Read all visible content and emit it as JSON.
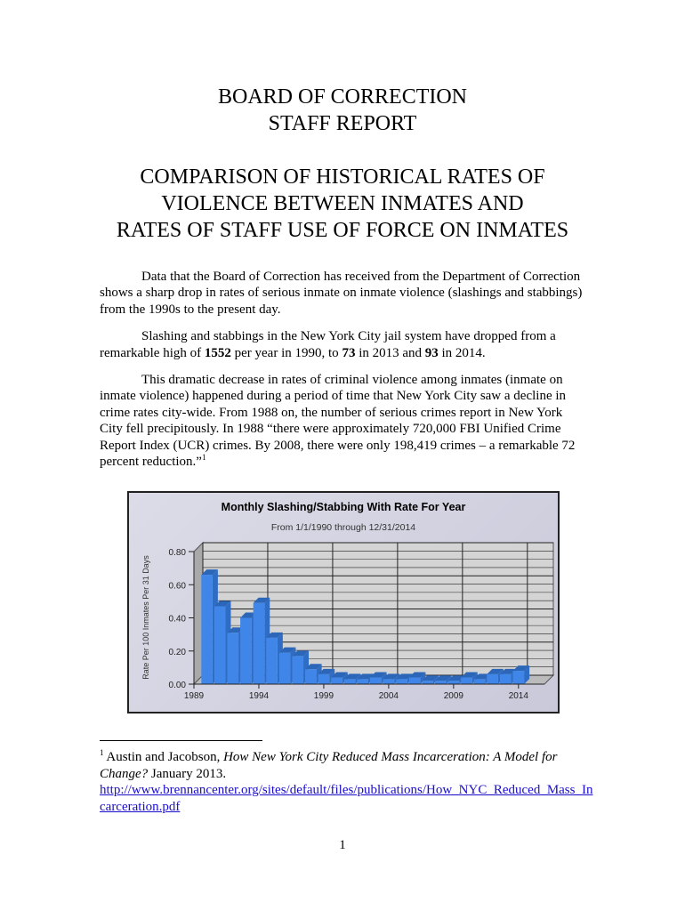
{
  "header": {
    "line1": "BOARD OF CORRECTION",
    "line2": "STAFF REPORT"
  },
  "title": {
    "line1": "COMPARISON OF HISTORICAL RATES OF",
    "line2": "VIOLENCE BETWEEN INMATES AND",
    "line3": "RATES OF STAFF USE OF FORCE ON INMATES"
  },
  "paragraphs": {
    "p1": "Data that the Board of Correction has received from the Department of Correction shows a sharp drop in rates of serious inmate on inmate violence (slashings and stabbings) from the 1990s to the present day.",
    "p2a": "Slashing and stabbings in the New York City jail system have dropped from a remarkable high of ",
    "p2b": "1552",
    "p2c": " per year in 1990, to ",
    "p2d": "73",
    "p2e": " in 2013 and ",
    "p2f": "93",
    "p2g": " in 2014.",
    "p3": "This dramatic decrease in rates of criminal violence among inmates (inmate on inmate violence) happened during a period of time that New York City saw a decline in crime rates city-wide.  From 1988 on, the number of serious crimes report in New York City fell precipitously.  In 1988 “there were approximately 720,000 FBI Unified Crime Report Index (UCR) crimes. By 2008, there were only 198,419 crimes – a remarkable 72 percent reduction.”",
    "p3_ref": "1"
  },
  "chart_data": {
    "type": "bar",
    "title": "Monthly Slashing/Stabbing With Rate For Year",
    "subtitle": "From 1/1/1990 through 12/31/2014",
    "ylabel": "Rate Per 100 Inmates Per 31 Days",
    "xlabel": "",
    "ylim": [
      0,
      0.8
    ],
    "yticks": [
      "0.00",
      "0.20",
      "0.40",
      "0.60",
      "0.80"
    ],
    "xticks": [
      "1989",
      "1994",
      "1999",
      "2004",
      "2009",
      "2014"
    ],
    "grid": true,
    "bar_color": "#3f86e8",
    "categories": [
      1990,
      1991,
      1992,
      1993,
      1994,
      1995,
      1996,
      1997,
      1998,
      1999,
      2000,
      2001,
      2002,
      2003,
      2004,
      2005,
      2006,
      2007,
      2008,
      2009,
      2010,
      2011,
      2012,
      2013,
      2014
    ],
    "values": [
      0.66,
      0.47,
      0.31,
      0.4,
      0.49,
      0.28,
      0.19,
      0.17,
      0.09,
      0.06,
      0.04,
      0.03,
      0.03,
      0.04,
      0.03,
      0.03,
      0.04,
      0.02,
      0.02,
      0.02,
      0.04,
      0.03,
      0.06,
      0.06,
      0.08
    ]
  },
  "footnote": {
    "num": "1",
    "authors": " Austin and Jacobson, ",
    "title": "How New York City Reduced Mass Incarceration: A Model for Change?",
    "date": " January 2013.",
    "link": "http://www.brennancenter.org/sites/default/files/publications/How_NYC_Reduced_Mass_Incarceration.pdf"
  },
  "page_number": "1"
}
